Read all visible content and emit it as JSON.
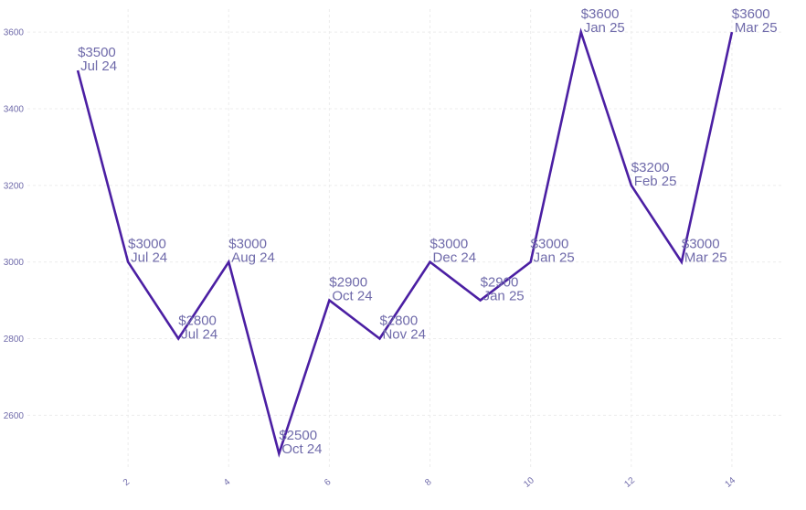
{
  "chart_data": {
    "type": "line",
    "x": [
      1,
      2,
      3,
      4,
      5,
      6,
      7,
      8,
      9,
      10,
      11,
      12,
      13,
      14
    ],
    "values": [
      3500,
      3000,
      2800,
      3000,
      2500,
      2900,
      2800,
      3000,
      2900,
      3000,
      3600,
      3200,
      3000,
      3600
    ],
    "labels": [
      {
        "value": "$3500",
        "month": "Jul 24"
      },
      {
        "value": "$3000",
        "month": "Jul 24"
      },
      {
        "value": "$2800",
        "month": "Jul 24"
      },
      {
        "value": "$3000",
        "month": "Aug 24"
      },
      {
        "value": "$2500",
        "month": "Oct 24"
      },
      {
        "value": "$2900",
        "month": "Oct 24"
      },
      {
        "value": "$2800",
        "month": "Nov 24"
      },
      {
        "value": "$3000",
        "month": "Dec 24"
      },
      {
        "value": "$2900",
        "month": "Jan 25"
      },
      {
        "value": "$3000",
        "month": "Jan 25"
      },
      {
        "value": "$3600",
        "month": "Jan 25"
      },
      {
        "value": "$3200",
        "month": "Feb 25"
      },
      {
        "value": "$3000",
        "month": "Mar 25"
      },
      {
        "value": "$3600",
        "month": "Mar 25"
      }
    ],
    "x_ticks": [
      2,
      4,
      6,
      8,
      10,
      12,
      14
    ],
    "y_ticks": [
      2600,
      2800,
      3000,
      3200,
      3400,
      3600
    ],
    "xlim": [
      0,
      15
    ],
    "ylim": [
      2460,
      3660
    ],
    "grid": true,
    "title": "",
    "xlabel": "",
    "ylabel": "",
    "line_color": "#4b1fa3",
    "label_color": "#6f6aaa"
  }
}
